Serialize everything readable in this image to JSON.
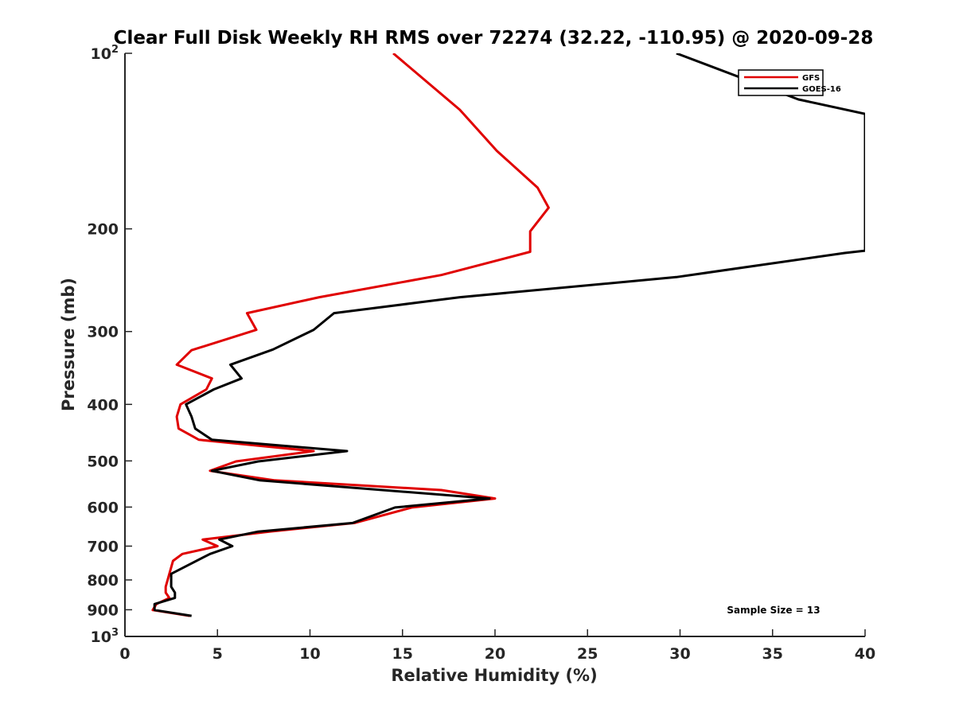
{
  "chart_data": {
    "type": "line",
    "title": "Clear Full Disk Weekly RH RMS over 72274 (32.22, -110.95) @ 2020-09-28",
    "xlabel": "Relative Humidity (%)",
    "ylabel": "Pressure (mb)",
    "xlim": [
      0,
      40
    ],
    "ylim": [
      100,
      1000
    ],
    "y_scale": "log",
    "y_reversed": true,
    "x_ticks": [
      "0",
      "5",
      "10",
      "15",
      "20",
      "25",
      "30",
      "35",
      "40"
    ],
    "y_ticks": [
      {
        "value": 100,
        "label": "10",
        "sup": "2"
      },
      {
        "value": 200,
        "label": "200",
        "sup": ""
      },
      {
        "value": 300,
        "label": "300",
        "sup": ""
      },
      {
        "value": 400,
        "label": "400",
        "sup": ""
      },
      {
        "value": 500,
        "label": "500",
        "sup": ""
      },
      {
        "value": 600,
        "label": "600",
        "sup": ""
      },
      {
        "value": 700,
        "label": "700",
        "sup": ""
      },
      {
        "value": 800,
        "label": "800",
        "sup": ""
      },
      {
        "value": 900,
        "label": "900",
        "sup": ""
      },
      {
        "value": 1000,
        "label": "10",
        "sup": "3"
      }
    ],
    "grid": false,
    "legend_position": "top-right",
    "series": [
      {
        "name": "GFS",
        "color": "#e00000",
        "points": [
          [
            14.5,
            100
          ],
          [
            18.1,
            125
          ],
          [
            20.1,
            147
          ],
          [
            22.3,
            170
          ],
          [
            22.9,
            184
          ],
          [
            21.9,
            202
          ],
          [
            21.9,
            219
          ],
          [
            17.1,
            240
          ],
          [
            10.5,
            262
          ],
          [
            6.6,
            279
          ],
          [
            7.1,
            298
          ],
          [
            3.6,
            323
          ],
          [
            2.8,
            342
          ],
          [
            4.7,
            361
          ],
          [
            4.4,
            377
          ],
          [
            3.0,
            400
          ],
          [
            2.8,
            420
          ],
          [
            2.9,
            440
          ],
          [
            4.0,
            460
          ],
          [
            10.2,
            481
          ],
          [
            6.0,
            501
          ],
          [
            4.6,
            520
          ],
          [
            8.1,
            540
          ],
          [
            17.1,
            561
          ],
          [
            20.0,
            580
          ],
          [
            15.5,
            601
          ],
          [
            12.4,
            639
          ],
          [
            7.8,
            661
          ],
          [
            4.2,
            682
          ],
          [
            5.0,
            700
          ],
          [
            3.1,
            722
          ],
          [
            2.6,
            742
          ],
          [
            2.4,
            781
          ],
          [
            2.2,
            822
          ],
          [
            2.2,
            841
          ],
          [
            2.4,
            859
          ],
          [
            1.7,
            880
          ],
          [
            1.5,
            901
          ],
          [
            3.5,
            922
          ]
        ]
      },
      {
        "name": "GOES-16",
        "color": "#000000",
        "points": [
          [
            29.8,
            100
          ],
          [
            36.4,
            120
          ],
          [
            40.0,
            127
          ],
          [
            40.0,
            218
          ],
          [
            38.9,
            220
          ],
          [
            29.8,
            242
          ],
          [
            18.1,
            262
          ],
          [
            11.3,
            279
          ],
          [
            10.2,
            298
          ],
          [
            8.0,
            322
          ],
          [
            5.7,
            342
          ],
          [
            6.3,
            361
          ],
          [
            4.8,
            377
          ],
          [
            3.3,
            400
          ],
          [
            3.6,
            420
          ],
          [
            3.8,
            440
          ],
          [
            4.7,
            460
          ],
          [
            12.0,
            481
          ],
          [
            7.2,
            501
          ],
          [
            4.7,
            520
          ],
          [
            7.3,
            540
          ],
          [
            19.7,
            580
          ],
          [
            14.6,
            601
          ],
          [
            12.3,
            639
          ],
          [
            7.2,
            661
          ],
          [
            5.1,
            682
          ],
          [
            5.8,
            700
          ],
          [
            4.6,
            722
          ],
          [
            2.5,
            781
          ],
          [
            2.5,
            822
          ],
          [
            2.7,
            841
          ],
          [
            2.7,
            859
          ],
          [
            1.6,
            880
          ],
          [
            1.6,
            901
          ],
          [
            3.6,
            922
          ]
        ]
      }
    ],
    "annotations": [
      "Sample Size = 13"
    ]
  }
}
